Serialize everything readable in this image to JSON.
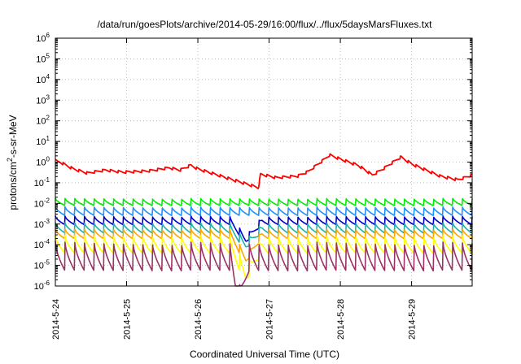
{
  "chart_data": {
    "type": "line",
    "title": "/data/run/goesPlots/archive/2014-05-29/16:00/flux/../flux/5daysMarsFluxes.txt",
    "xlabel": "Coordinated Universal Time (UTC)",
    "ylabel": "protons/cm2-s-sr-MeV",
    "ylabel_parts": {
      "base": "protons/cm",
      "sup": "2",
      "rest": "-s-sr-MeV"
    },
    "x_unit": "days since 2014-05-24 00:00 UTC",
    "xlim": [
      0,
      5.85
    ],
    "xticks": [
      {
        "x": 0,
        "label": "2014-5-24"
      },
      {
        "x": 1,
        "label": "2014-5-25"
      },
      {
        "x": 2,
        "label": "2014-5-26"
      },
      {
        "x": 3,
        "label": "2014-5-27"
      },
      {
        "x": 4,
        "label": "2014-5-28"
      },
      {
        "x": 5,
        "label": "2014-5-29"
      }
    ],
    "y_scale": "log",
    "ylim": [
      1e-06,
      1000000.0
    ],
    "yticks": [
      {
        "v": 1e-06,
        "base": "10",
        "exp": "-6"
      },
      {
        "v": 1e-05,
        "base": "10",
        "exp": "-5"
      },
      {
        "v": 0.0001,
        "base": "10",
        "exp": "-4"
      },
      {
        "v": 0.001,
        "base": "10",
        "exp": "-3"
      },
      {
        "v": 0.01,
        "base": "10",
        "exp": "-2"
      },
      {
        "v": 0.1,
        "base": "10",
        "exp": "-1"
      },
      {
        "v": 1,
        "base": "10",
        "exp": "0"
      },
      {
        "v": 10,
        "base": "10",
        "exp": "1"
      },
      {
        "v": 100,
        "base": "10",
        "exp": "2"
      },
      {
        "v": 1000,
        "base": "10",
        "exp": "3"
      },
      {
        "v": 10000,
        "base": "10",
        "exp": "4"
      },
      {
        "v": 100000,
        "base": "10",
        "exp": "5"
      },
      {
        "v": 1000000,
        "base": "10",
        "exp": "6"
      }
    ],
    "grid": true,
    "grid_style": "dotted",
    "legend": "none",
    "sawtooth_period_days": 0.136,
    "series": [
      {
        "name": "",
        "color": "#ff0000",
        "min": [
          0,
          0.4
        ],
        "max": [
          0,
          1.0
        ],
        "points": [
          [
            0.0,
            1.0
          ],
          [
            0.08,
            0.8
          ],
          [
            0.25,
            0.4
          ],
          [
            0.45,
            0.25
          ],
          [
            0.7,
            0.35
          ],
          [
            0.95,
            0.28
          ],
          [
            1.3,
            0.32
          ],
          [
            1.6,
            0.45
          ],
          [
            1.75,
            0.35
          ],
          [
            1.9,
            0.6
          ],
          [
            2.0,
            0.4
          ],
          [
            2.4,
            0.15
          ],
          [
            2.85,
            0.05
          ],
          [
            2.88,
            0.22
          ],
          [
            3.1,
            0.15
          ],
          [
            3.4,
            0.18
          ],
          [
            3.55,
            0.3
          ],
          [
            3.75,
            1.0
          ],
          [
            3.85,
            1.9
          ],
          [
            4.0,
            1.2
          ],
          [
            4.25,
            0.6
          ],
          [
            4.45,
            0.2
          ],
          [
            4.6,
            0.4
          ],
          [
            4.75,
            0.9
          ],
          [
            4.85,
            1.5
          ],
          [
            5.0,
            0.7
          ],
          [
            5.4,
            0.18
          ],
          [
            5.65,
            0.12
          ],
          [
            5.85,
            0.2
          ]
        ]
      },
      {
        "name": "",
        "color": "#00ee00",
        "min": [
          0,
          0.008
        ],
        "max": [
          0,
          0.02
        ],
        "points": [
          [
            0.0,
            0.018
          ],
          [
            5.85,
            0.018
          ]
        ],
        "dip": null
      },
      {
        "name": "",
        "color": "#1e90ff",
        "min": [
          0,
          0.003
        ],
        "max": [
          0,
          0.009
        ],
        "points": [
          [
            0.0,
            0.007
          ],
          [
            5.85,
            0.007
          ]
        ],
        "dip": null
      },
      {
        "name": "",
        "color": "#0000cd",
        "min": [
          0,
          0.001
        ],
        "max": [
          0,
          0.003
        ],
        "points": [
          [
            0.0,
            0.0025
          ],
          [
            5.85,
            0.0025
          ]
        ],
        "dip": {
          "x0": 2.45,
          "x1": 2.9,
          "depth": 8
        }
      },
      {
        "name": "",
        "color": "#20b2aa",
        "min": [
          0,
          0.0004
        ],
        "max": [
          0,
          0.0015
        ],
        "points": [
          [
            0.0,
            0.0012
          ],
          [
            5.85,
            0.0012
          ]
        ],
        "dip": {
          "x0": 2.45,
          "x1": 2.9,
          "depth": 6
        }
      },
      {
        "name": "",
        "color": "#ffa500",
        "min": [
          0,
          0.0002
        ],
        "max": [
          0,
          0.0007
        ],
        "points": [
          [
            0.0,
            0.0006
          ],
          [
            5.85,
            0.0006
          ]
        ],
        "dip": {
          "x0": 2.45,
          "x1": 2.9,
          "depth": 15
        }
      },
      {
        "name": "",
        "color": "#ffff00",
        "min": [
          0,
          4e-05
        ],
        "max": [
          0,
          0.0004
        ],
        "points": [
          [
            0.0,
            0.0003
          ],
          [
            5.85,
            0.0003
          ]
        ],
        "dip": {
          "x0": 2.45,
          "x1": 2.9,
          "depth": 25
        }
      },
      {
        "name": "",
        "color": "#993366",
        "min": [
          0,
          5e-06
        ],
        "max": [
          0,
          0.0002
        ],
        "points": [
          [
            0.0,
            0.00015
          ],
          [
            5.85,
            0.00015
          ]
        ],
        "dip": {
          "x0": 2.45,
          "x1": 2.72,
          "depth": 100
        }
      }
    ]
  }
}
